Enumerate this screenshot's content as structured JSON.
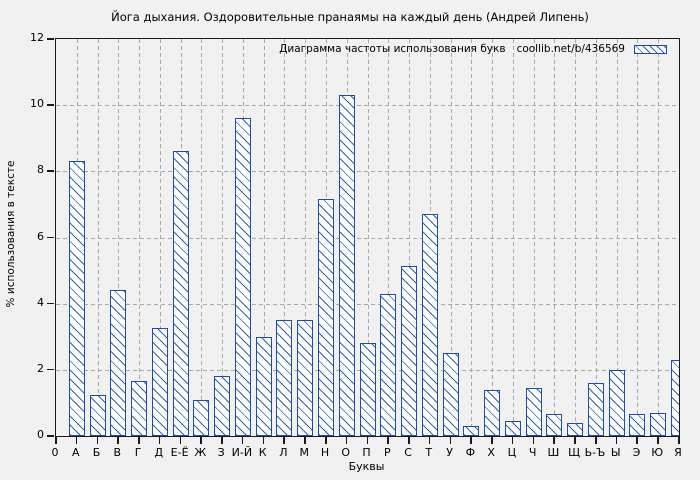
{
  "title": "Йога дыхания. Оздоровительные пранаямы на каждый день (Андрей Липень)",
  "legend": {
    "label": "Диаграмма частоты использования букв",
    "source": "coollib.net/b/436569",
    "swatch_icon": "hatched-bar-swatch"
  },
  "axes": {
    "x_label": "Буквы",
    "y_label": "% использования в тексте"
  },
  "colors": {
    "bar_border": "#1d4da6",
    "bar_hatch": "#3060b5",
    "bar_fill": "#ffffff",
    "background": "#f1f1f1",
    "grid": "#a9a9a9",
    "axis": "#1a1a1a"
  },
  "chart_data": {
    "type": "bar",
    "title": "Йога дыхания. Оздоровительные пранаямы на каждый день (Андрей Липень)",
    "xlabel": "Буквы",
    "ylabel": "% использования в тексте",
    "ylim": [
      0,
      12
    ],
    "y_ticks": [
      0,
      2,
      4,
      6,
      8,
      10,
      12
    ],
    "grid": true,
    "legend_position": "top-right",
    "hatch": "diagonal",
    "categories": [
      "0",
      "А",
      "Б",
      "В",
      "Г",
      "Д",
      "Е-Ё",
      "Ж",
      "З",
      "И-Й",
      "К",
      "Л",
      "М",
      "Н",
      "О",
      "П",
      "Р",
      "С",
      "Т",
      "У",
      "Ф",
      "Х",
      "Ц",
      "Ч",
      "Ш",
      "Щ",
      "Ь-Ъ",
      "Ы",
      "Э",
      "Ю",
      "Я"
    ],
    "values": [
      null,
      8.3,
      1.25,
      4.4,
      1.65,
      3.25,
      8.6,
      1.1,
      1.8,
      9.6,
      3.0,
      3.5,
      3.5,
      7.15,
      10.3,
      2.8,
      4.3,
      5.15,
      6.7,
      2.5,
      0.3,
      1.4,
      0.45,
      1.45,
      0.65,
      0.4,
      1.6,
      2.0,
      0.65,
      0.7,
      2.3
    ]
  }
}
